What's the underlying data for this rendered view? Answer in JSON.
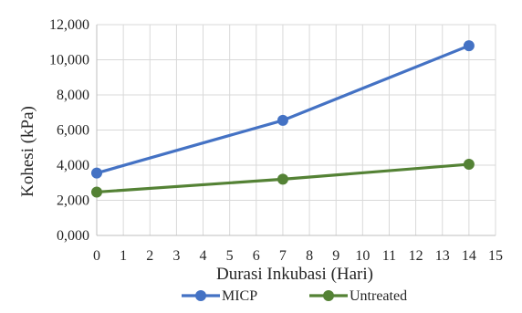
{
  "chart_data": {
    "type": "line",
    "title": "",
    "xlabel": "Durasi Inkubasi (Hari)",
    "ylabel": "Kohesi (kPa)",
    "xlim": [
      0,
      15
    ],
    "ylim": [
      0,
      12000
    ],
    "x_ticks": [
      0,
      1,
      2,
      3,
      4,
      5,
      6,
      7,
      8,
      9,
      10,
      11,
      12,
      13,
      14,
      15
    ],
    "x_tick_labels": [
      "0",
      "1",
      "2",
      "3",
      "4",
      "5",
      "6",
      "7",
      "8",
      "9",
      "10",
      "11",
      "12",
      "13",
      "14",
      "15"
    ],
    "y_ticks": [
      0,
      2000,
      4000,
      6000,
      8000,
      10000,
      12000
    ],
    "y_tick_labels": [
      "0,000",
      "2,000",
      "4,000",
      "6,000",
      "8,000",
      "10,000",
      "12,000"
    ],
    "grid": "both",
    "legend_position": "bottom",
    "series": [
      {
        "name": "MICP",
        "color": "#4472C4",
        "x": [
          0,
          7,
          14
        ],
        "y": [
          3550,
          6550,
          10800
        ]
      },
      {
        "name": "Untreated",
        "color": "#548235",
        "x": [
          0,
          7,
          14
        ],
        "y": [
          2470,
          3200,
          4050
        ]
      }
    ]
  }
}
